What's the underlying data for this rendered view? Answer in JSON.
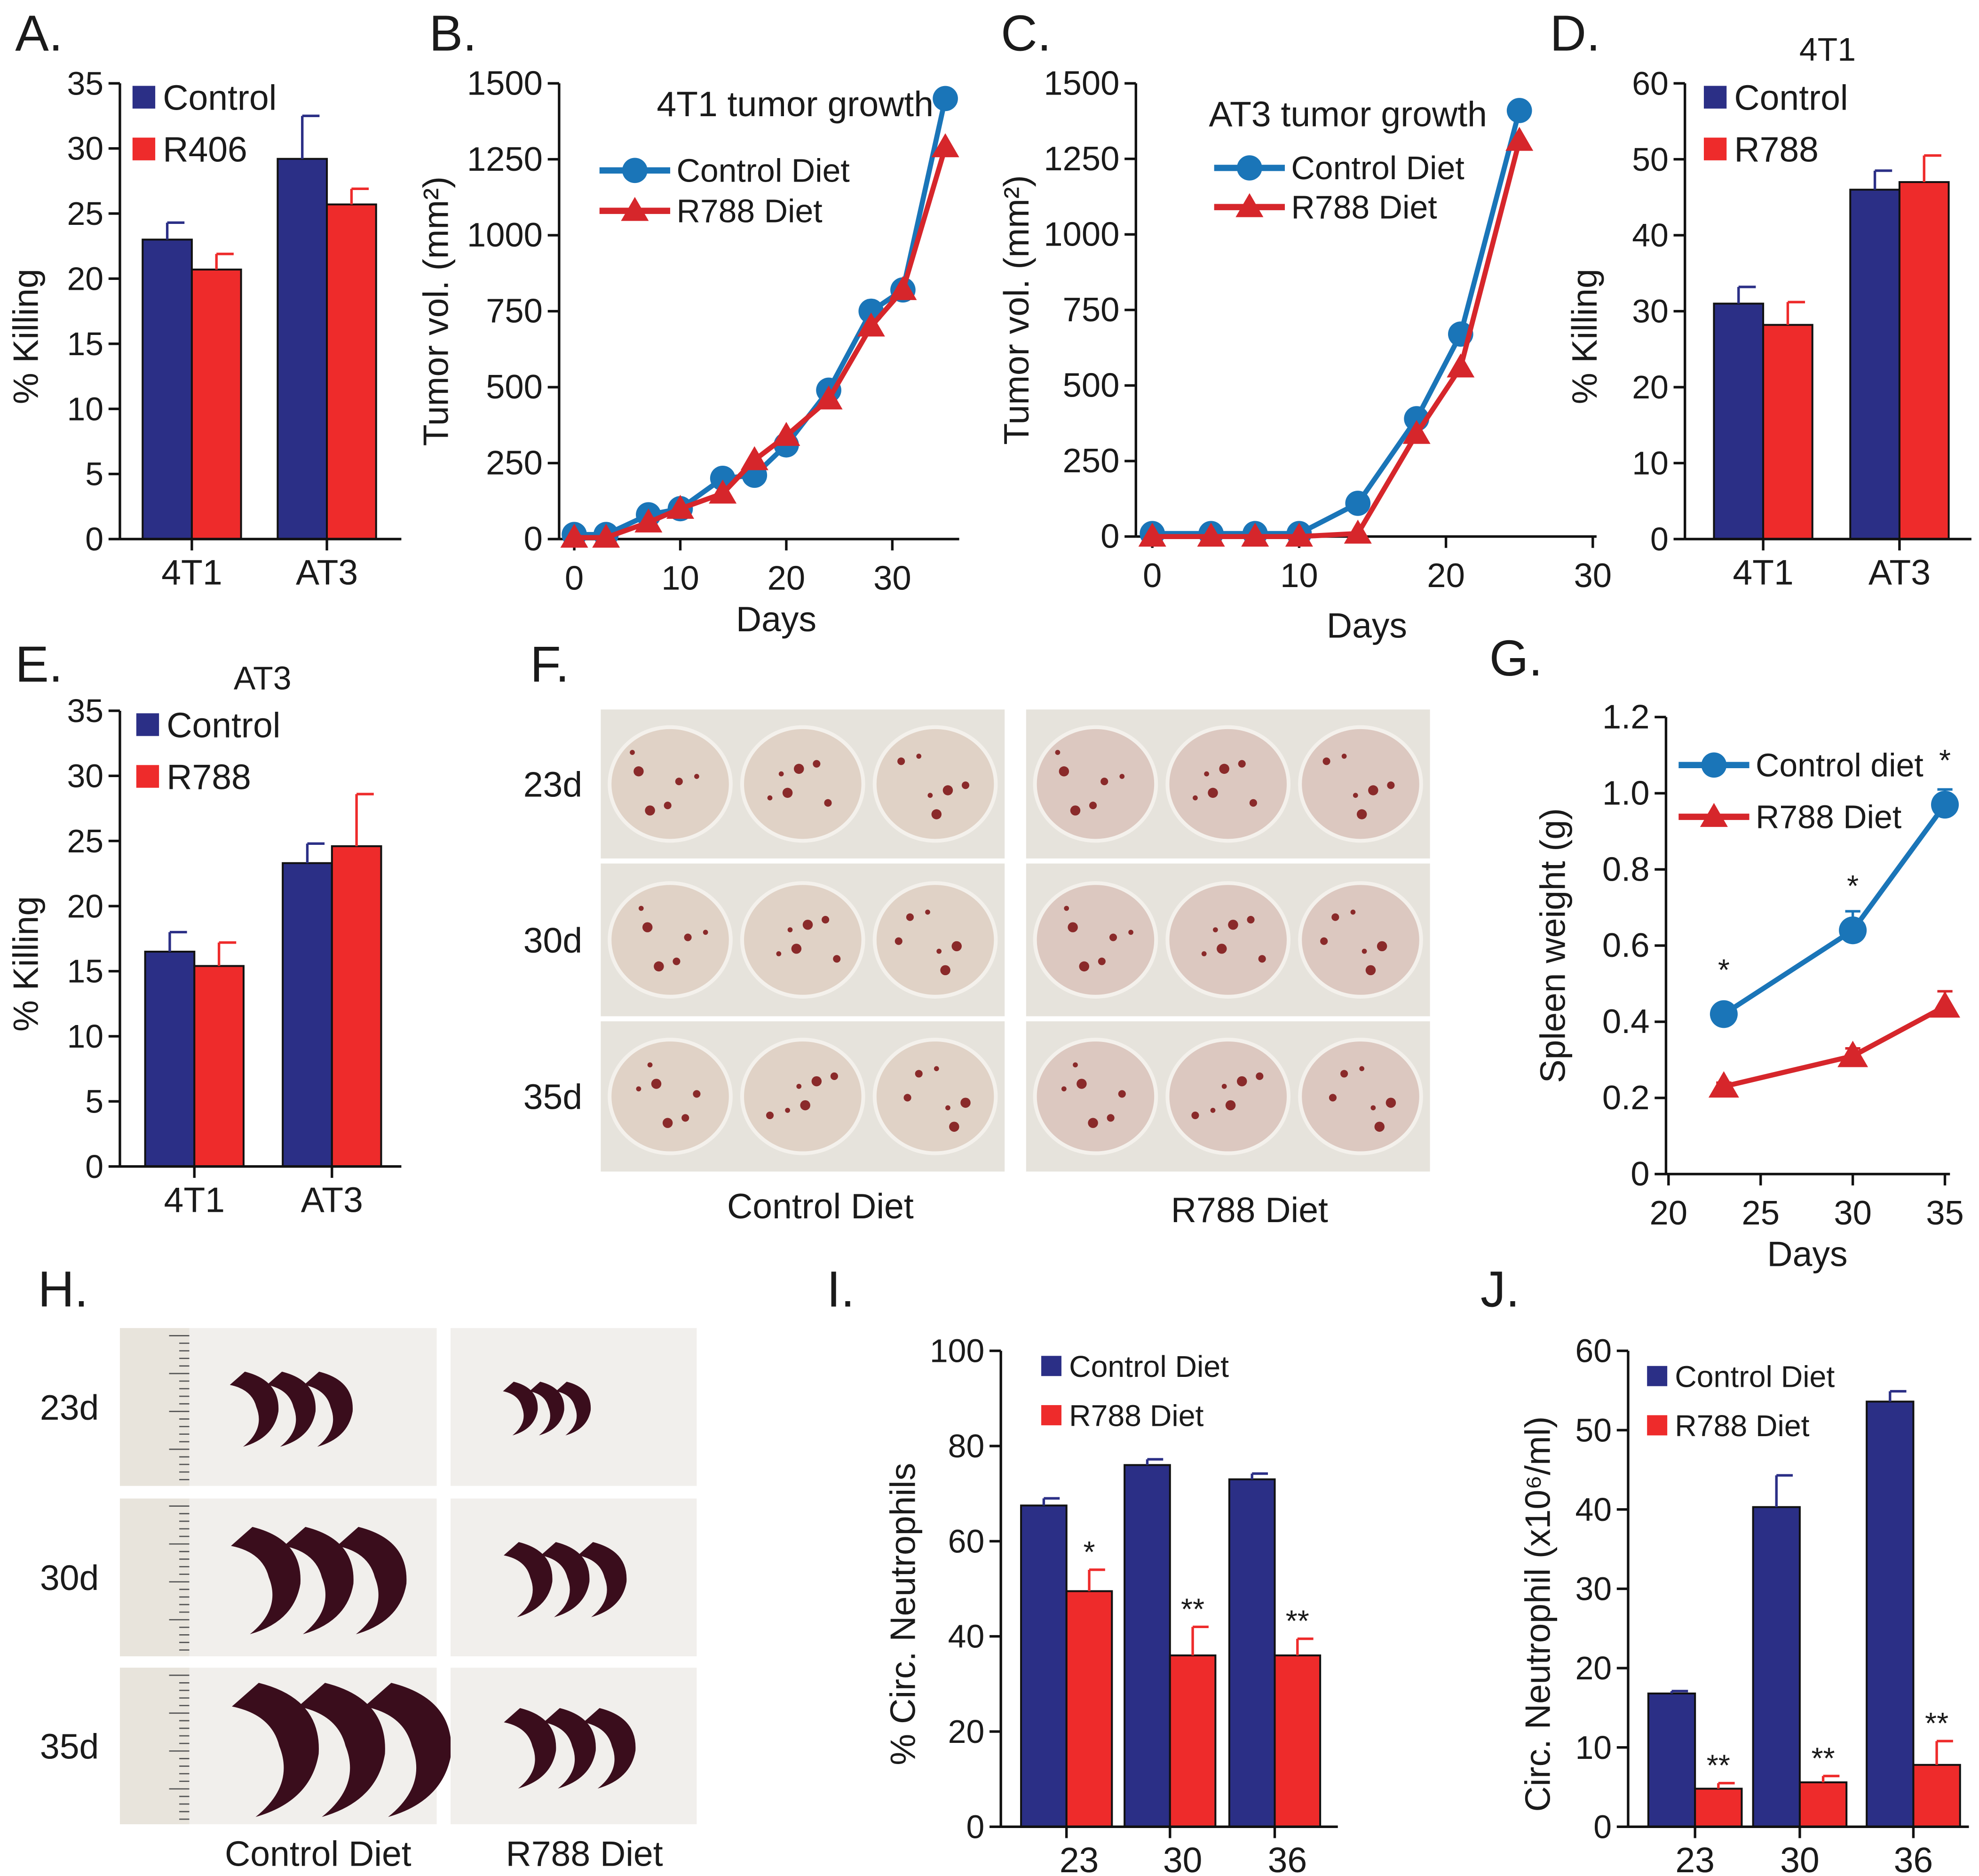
{
  "panel_labels": [
    "A.",
    "B.",
    "C.",
    "D.",
    "E.",
    "F.",
    "G.",
    "H.",
    "I.",
    "J."
  ],
  "colors": {
    "navy": "#2b2f86",
    "red": "#ee2b2b",
    "line_blue": "#1a75b8",
    "line_red": "#d6262b"
  },
  "chart_data": [
    {
      "id": "A",
      "type": "bar",
      "title": "",
      "ylabel": "% Killing",
      "ylim": [
        0,
        35
      ],
      "yticks": [
        0,
        5,
        10,
        15,
        20,
        25,
        30,
        35
      ],
      "categories": [
        "4T1",
        "AT3"
      ],
      "series": [
        {
          "name": "Control",
          "color": "#2b2f86",
          "values": [
            23.0,
            29.2
          ],
          "errors": [
            1.3,
            3.3
          ]
        },
        {
          "name": "R406",
          "color": "#ee2b2b",
          "values": [
            20.7,
            25.7
          ],
          "errors": [
            1.2,
            1.2
          ]
        }
      ]
    },
    {
      "id": "B",
      "type": "line",
      "title": "4T1 tumor growth",
      "xlabel": "Days",
      "ylabel": "Tumor vol. (mm²)",
      "xlim": [
        0,
        35
      ],
      "ylim": [
        0,
        1500
      ],
      "xticks": [
        0,
        10,
        20,
        30
      ],
      "yticks": [
        0,
        250,
        500,
        750,
        1000,
        1250,
        1500
      ],
      "series": [
        {
          "name": "Control Diet",
          "marker": "circle",
          "color": "#1a75b8",
          "x": [
            0,
            3,
            7,
            10,
            14,
            17,
            20,
            24,
            28,
            31,
            35
          ],
          "y": [
            15,
            15,
            80,
            100,
            200,
            210,
            310,
            490,
            750,
            820,
            1450
          ]
        },
        {
          "name": "R788 Diet",
          "marker": "triangle",
          "color": "#d6262b",
          "x": [
            0,
            3,
            7,
            10,
            14,
            17,
            20,
            24,
            28,
            31,
            35
          ],
          "y": [
            5,
            5,
            55,
            100,
            150,
            260,
            340,
            460,
            700,
            820,
            1290
          ]
        }
      ]
    },
    {
      "id": "C",
      "type": "line",
      "title": "AT3 tumor growth",
      "xlabel": "Days",
      "ylabel": "Tumor vol. (mm²)",
      "xlim": [
        0,
        30
      ],
      "ylim": [
        0,
        1500
      ],
      "xticks": [
        0,
        10,
        20,
        30
      ],
      "yticks": [
        0,
        250,
        500,
        750,
        1000,
        1250,
        1500
      ],
      "series": [
        {
          "name": "Control Diet",
          "marker": "circle",
          "color": "#1a75b8",
          "x": [
            0,
            4,
            7,
            10,
            14,
            18,
            21,
            25
          ],
          "y": [
            10,
            10,
            10,
            10,
            110,
            390,
            670,
            1410
          ]
        },
        {
          "name": "R788 Diet",
          "marker": "triangle",
          "color": "#d6262b",
          "x": [
            0,
            4,
            7,
            10,
            14,
            18,
            21,
            25
          ],
          "y": [
            0,
            0,
            0,
            0,
            10,
            340,
            560,
            1310
          ]
        }
      ]
    },
    {
      "id": "D",
      "type": "bar",
      "title": "4T1",
      "ylabel": "% Killing",
      "ylim": [
        0,
        60
      ],
      "yticks": [
        0,
        10,
        20,
        30,
        40,
        50,
        60
      ],
      "categories": [
        "4T1",
        "AT3"
      ],
      "series": [
        {
          "name": "Control",
          "color": "#2b2f86",
          "values": [
            31.0,
            46.0
          ],
          "errors": [
            2.2,
            2.5
          ]
        },
        {
          "name": "R788",
          "color": "#ee2b2b",
          "values": [
            28.2,
            47.0
          ],
          "errors": [
            3.0,
            3.5
          ]
        }
      ]
    },
    {
      "id": "E",
      "type": "bar",
      "title": "AT3",
      "ylabel": "% Killing",
      "ylim": [
        0,
        35
      ],
      "yticks": [
        0,
        5,
        10,
        15,
        20,
        25,
        30,
        35
      ],
      "categories": [
        "4T1",
        "AT3"
      ],
      "series": [
        {
          "name": "Control",
          "color": "#2b2f86",
          "values": [
            16.5,
            23.3
          ],
          "errors": [
            1.5,
            1.5
          ]
        },
        {
          "name": "R788",
          "color": "#ee2b2b",
          "values": [
            15.4,
            24.6
          ],
          "errors": [
            1.8,
            4.0
          ]
        }
      ]
    },
    {
      "id": "G",
      "type": "line",
      "title": "",
      "xlabel": "Days",
      "ylabel": "Spleen weight (g)",
      "xlim": [
        20,
        35
      ],
      "ylim": [
        0,
        1.2
      ],
      "xticks": [
        20,
        25,
        30,
        35
      ],
      "yticks": [
        "0",
        "0.2",
        "0.4",
        "0.6",
        "0.8",
        "1.0",
        "1.2"
      ],
      "series": [
        {
          "name": "Control diet",
          "marker": "circle",
          "color": "#1a75b8",
          "x": [
            23,
            30,
            35
          ],
          "y": [
            0.42,
            0.64,
            0.97
          ],
          "errors": [
            0.02,
            0.05,
            0.04
          ],
          "annotations": [
            "*",
            "*",
            "*"
          ]
        },
        {
          "name": "R788 Diet",
          "marker": "triangle",
          "color": "#d6262b",
          "x": [
            23,
            30,
            35
          ],
          "y": [
            0.23,
            0.31,
            0.44
          ],
          "errors": [
            0.01,
            0.02,
            0.04
          ]
        }
      ]
    },
    {
      "id": "I",
      "type": "bar",
      "title": "",
      "ylabel": "% Circ. Neutrophils",
      "ylim": [
        0,
        100
      ],
      "yticks": [
        0,
        20,
        40,
        60,
        80,
        100
      ],
      "categories": [
        "23",
        "30",
        "36"
      ],
      "series": [
        {
          "name": "Control Diet",
          "color": "#2b2f86",
          "values": [
            67.5,
            76.0,
            73.0
          ],
          "errors": [
            1.5,
            1.2,
            1.2
          ]
        },
        {
          "name": "R788 Diet",
          "color": "#ee2b2b",
          "values": [
            49.5,
            36.0,
            36.0
          ],
          "errors": [
            4.5,
            6.0,
            3.5
          ],
          "annotations": [
            "*",
            "**",
            "**"
          ]
        }
      ]
    },
    {
      "id": "J",
      "type": "bar",
      "title": "",
      "ylabel": "Circ. Neutrophil (x10⁶/ml)",
      "ylim": [
        0,
        60
      ],
      "yticks": [
        0,
        10,
        20,
        30,
        40,
        50,
        60
      ],
      "categories": [
        "23",
        "30",
        "36"
      ],
      "series": [
        {
          "name": "Control Diet",
          "color": "#2b2f86",
          "values": [
            16.8,
            40.3,
            53.6
          ],
          "errors": [
            0.3,
            4.0,
            1.3
          ]
        },
        {
          "name": "R788 Diet",
          "color": "#ee2b2b",
          "values": [
            4.8,
            5.6,
            7.8
          ],
          "errors": [
            0.7,
            0.8,
            3.0
          ],
          "annotations": [
            "**",
            "**",
            "**"
          ]
        }
      ]
    }
  ],
  "photo_F": {
    "rows": [
      "23d",
      "30d",
      "35d"
    ],
    "cols": [
      "Control Diet",
      "R788 Diet"
    ]
  },
  "photo_H": {
    "rows": [
      "23d",
      "30d",
      "35d"
    ],
    "cols": [
      "Control Diet",
      "R788 Diet"
    ]
  }
}
